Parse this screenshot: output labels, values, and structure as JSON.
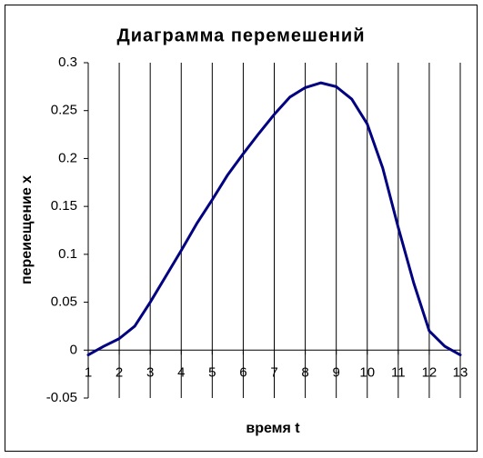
{
  "chart_data": {
    "type": "line",
    "title": "Диаграмма перемешений",
    "x_label": "время t",
    "y_label": "переиещение x",
    "x": [
      1,
      1.5,
      2,
      2.5,
      3,
      3.5,
      4,
      4.5,
      5,
      5.5,
      6,
      6.5,
      7,
      7.5,
      8,
      8.5,
      9,
      9.5,
      10,
      10.5,
      11,
      11.5,
      12,
      12.5,
      13
    ],
    "series": [
      {
        "color": "#000080",
        "values": [
          -0.005,
          0.004,
          0.012,
          0.025,
          0.05,
          0.077,
          0.104,
          0.132,
          0.157,
          0.183,
          0.205,
          0.226,
          0.246,
          0.264,
          0.274,
          0.279,
          0.275,
          0.262,
          0.236,
          0.19,
          0.128,
          0.07,
          0.02,
          0.004,
          -0.005
        ]
      }
    ],
    "xlim": [
      1,
      13
    ],
    "xticks": [
      1,
      2,
      3,
      4,
      5,
      6,
      7,
      8,
      9,
      10,
      11,
      12,
      13
    ],
    "ylim": [
      -0.05,
      0.3
    ],
    "yticks": [
      -0.05,
      0,
      0.05,
      0.1,
      0.15,
      0.2,
      0.25,
      0.3
    ],
    "grid": "x"
  }
}
